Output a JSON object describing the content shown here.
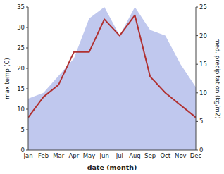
{
  "chart_data": {
    "type": "line",
    "categories": [
      "Jan",
      "Feb",
      "Mar",
      "Apr",
      "May",
      "Jun",
      "Jul",
      "Aug",
      "Sep",
      "Oct",
      "Nov",
      "Dec"
    ],
    "xlabel": "date (month)",
    "ylabel": "max temp (C)",
    "y2label": "med. precipitation (kg/m2)",
    "ylim": [
      0,
      35
    ],
    "yticks": [
      0,
      5,
      10,
      15,
      20,
      25,
      30,
      35
    ],
    "y2lim": [
      0,
      25
    ],
    "y2ticks": [
      0,
      5,
      10,
      15,
      20,
      25
    ],
    "grid": false,
    "series": [
      {
        "type": "area",
        "axis": "y2",
        "color": "#c0c8ee",
        "values": [
          9,
          10,
          13,
          16,
          23,
          25,
          20,
          25,
          21,
          20,
          15,
          11
        ]
      },
      {
        "type": "line",
        "color": "#b03030",
        "values": [
          8,
          13,
          16,
          24,
          24,
          32,
          28,
          33,
          18,
          14,
          11,
          8
        ]
      }
    ]
  }
}
